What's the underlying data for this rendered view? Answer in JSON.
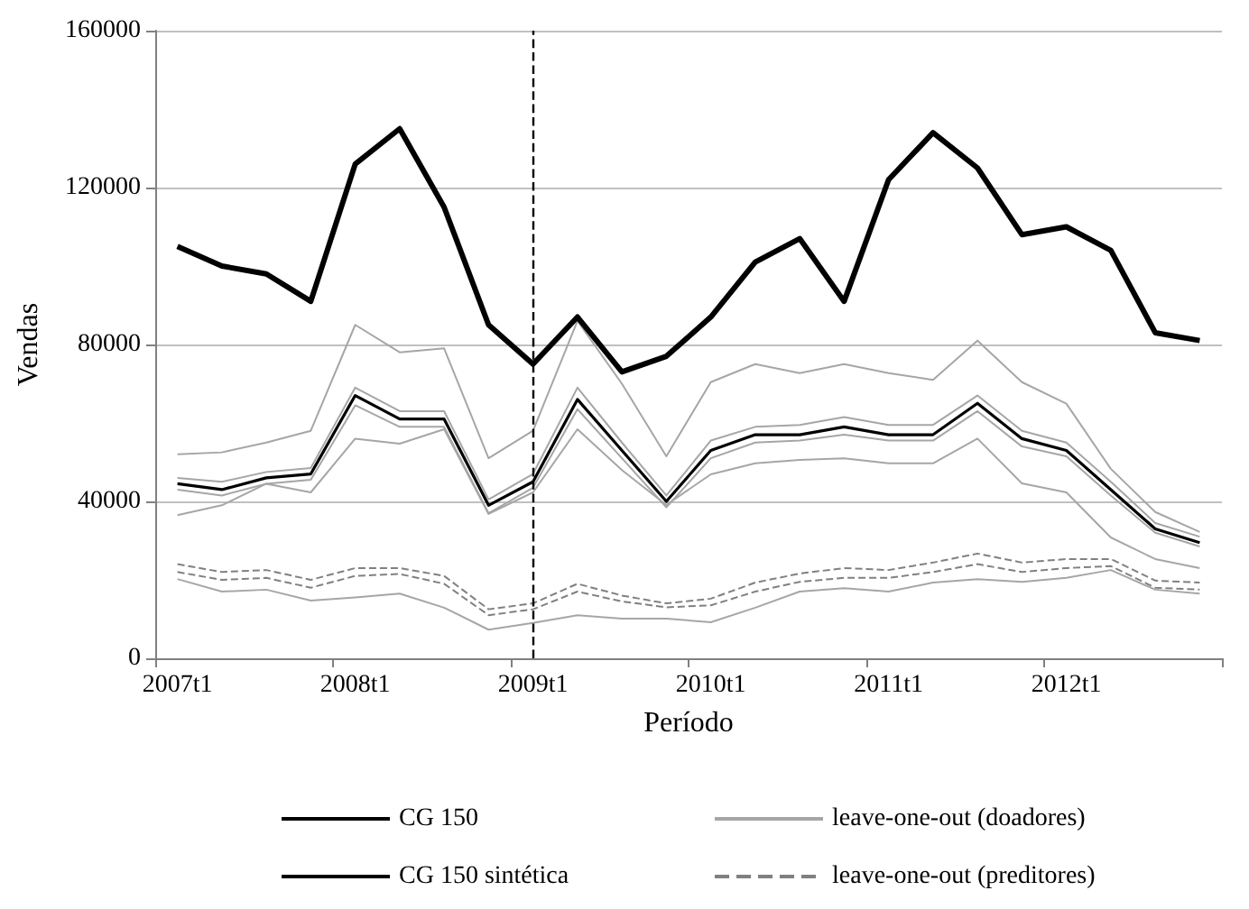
{
  "chart_data": {
    "type": "line",
    "xlabel": "Período",
    "ylabel": "Vendas",
    "categories": [
      "2007t1",
      null,
      null,
      null,
      "2008t1",
      null,
      null,
      null,
      "2009t1",
      null,
      null,
      null,
      "2010t1",
      null,
      null,
      null,
      "2011t1",
      null,
      null,
      null,
      "2012t1",
      null,
      null,
      null
    ],
    "ylim": [
      0,
      160000
    ],
    "yticks": [
      0,
      40000,
      80000,
      120000,
      160000
    ],
    "grid": "y",
    "legend": "bottom",
    "marker": "none",
    "ref_lines": [
      {
        "axis": "x",
        "value": "2009t1",
        "color": "#000000",
        "line_style": "dashed"
      }
    ],
    "series": [
      {
        "name": "CG 150",
        "color": "#000000",
        "values": [
          105000,
          100000,
          98000,
          91000,
          126000,
          135000,
          115000,
          85000,
          75000,
          87000,
          73000,
          77000,
          87000,
          101000,
          107000,
          91000,
          122000,
          134000,
          125000,
          108000,
          110000,
          104000,
          83000,
          81000
        ]
      },
      {
        "name": "CG 150 sintética",
        "color": "#000000",
        "values": [
          44500,
          43000,
          46000,
          47000,
          67000,
          61000,
          61000,
          39000,
          45000,
          66000,
          53000,
          40000,
          53000,
          57000,
          57000,
          59000,
          57000,
          57000,
          65000,
          56000,
          53000,
          43000,
          33000,
          29500
        ]
      },
      {
        "name": "leave-one-out (doadores)",
        "color": "#a6a6a6",
        "values": [
          52000,
          52500,
          55000,
          58000,
          85000,
          78000,
          79000,
          51000,
          58000,
          86000,
          70000,
          51500,
          70400,
          75000,
          72700,
          75000,
          72700,
          71000,
          81000,
          70400,
          64900,
          48300,
          37300,
          32200
        ]
      },
      {
        "color": "#a6a6a6",
        "values": [
          46000,
          45000,
          47500,
          48500,
          69000,
          63000,
          63000,
          40500,
          47000,
          69000,
          55000,
          41500,
          55500,
          59000,
          59500,
          61500,
          59500,
          59500,
          67000,
          58000,
          55000,
          45000,
          34500,
          31000
        ]
      },
      {
        "color": "#a6a6a6",
        "values": [
          43000,
          41500,
          44500,
          45500,
          64500,
          59000,
          59000,
          37000,
          43500,
          63500,
          51000,
          38500,
          51000,
          55000,
          55500,
          57000,
          55500,
          55500,
          63000,
          54000,
          51500,
          41500,
          32000,
          28500
        ]
      },
      {
        "color": "#a6a6a6",
        "values": [
          36500,
          39000,
          44500,
          42300,
          56000,
          54700,
          58400,
          36800,
          42300,
          58400,
          48000,
          39100,
          46900,
          49700,
          50600,
          51000,
          49700,
          49700,
          56000,
          44600,
          42300,
          30800,
          25300,
          23000
        ]
      },
      {
        "color": "#a6a6a6",
        "values": [
          20200,
          17000,
          17500,
          14700,
          15500,
          16500,
          12900,
          7300,
          9000,
          11000,
          10100,
          10100,
          9200,
          12900,
          17000,
          17900,
          17000,
          19300,
          20200,
          19500,
          20500,
          22500,
          17500,
          16500
        ]
      },
      {
        "name": "leave-one-out (preditores)",
        "color": "#808080",
        "line_style": "dashed",
        "values": [
          24000,
          22000,
          22500,
          20000,
          23000,
          23000,
          21000,
          12500,
          14000,
          19000,
          16000,
          14000,
          15200,
          19300,
          21600,
          23000,
          22500,
          24400,
          26700,
          24400,
          25300,
          25300,
          19800,
          19300
        ]
      },
      {
        "color": "#808080",
        "line_style": "dashed",
        "values": [
          22000,
          20000,
          20500,
          18000,
          21000,
          21500,
          19000,
          11000,
          12500,
          17000,
          14500,
          13000,
          13500,
          17000,
          19500,
          20500,
          20500,
          22000,
          24000,
          22000,
          23000,
          23500,
          18000,
          17500
        ]
      }
    ]
  }
}
